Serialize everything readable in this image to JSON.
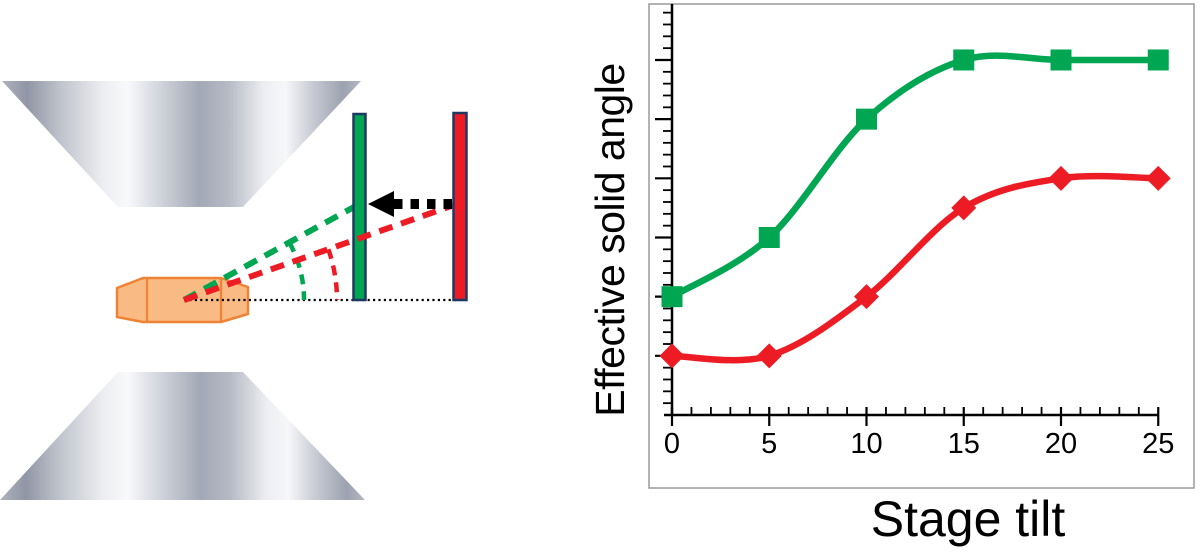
{
  "chart_data": {
    "type": "line",
    "x": [
      0,
      5,
      10,
      15,
      20,
      25
    ],
    "series": [
      {
        "name": "green-squares-series",
        "color": "#00A651",
        "marker": "square",
        "values": [
          2,
          3,
          5,
          6,
          6,
          6
        ]
      },
      {
        "name": "red-diamonds-series",
        "color": "#ED1C24",
        "marker": "diamond",
        "values": [
          1,
          1,
          2,
          3.5,
          4,
          4
        ]
      }
    ],
    "title": "",
    "xlabel": "Stage tilt",
    "ylabel": "Effective solid angle",
    "x_tick_labels": [
      "0",
      "5",
      "10",
      "15",
      "20",
      "25"
    ],
    "x_minor_tick_step": 1,
    "y_tick_labels": "none",
    "y_major_tick_step": 1,
    "y_minor_tick_step": 0.2,
    "xlim": [
      0,
      25.3
    ],
    "ylim": [
      0,
      6.95
    ],
    "grid": false,
    "legend": "none",
    "smooth": true,
    "axis_color": "#000000",
    "frame_color": "#9a9a9a"
  },
  "diagram": {
    "colors": {
      "near_detector_green": "#00A651",
      "far_detector_red": "#ED1C24",
      "detector_outline_navy": "#1F3864",
      "sample_fill": "#F9BA84",
      "sample_outline": "#EF8335",
      "pole_metal_dark": "#9096A5",
      "pole_metal_light": "#F8F9FB",
      "reference_line": "#000000",
      "shift_arrow": "#000000"
    }
  }
}
